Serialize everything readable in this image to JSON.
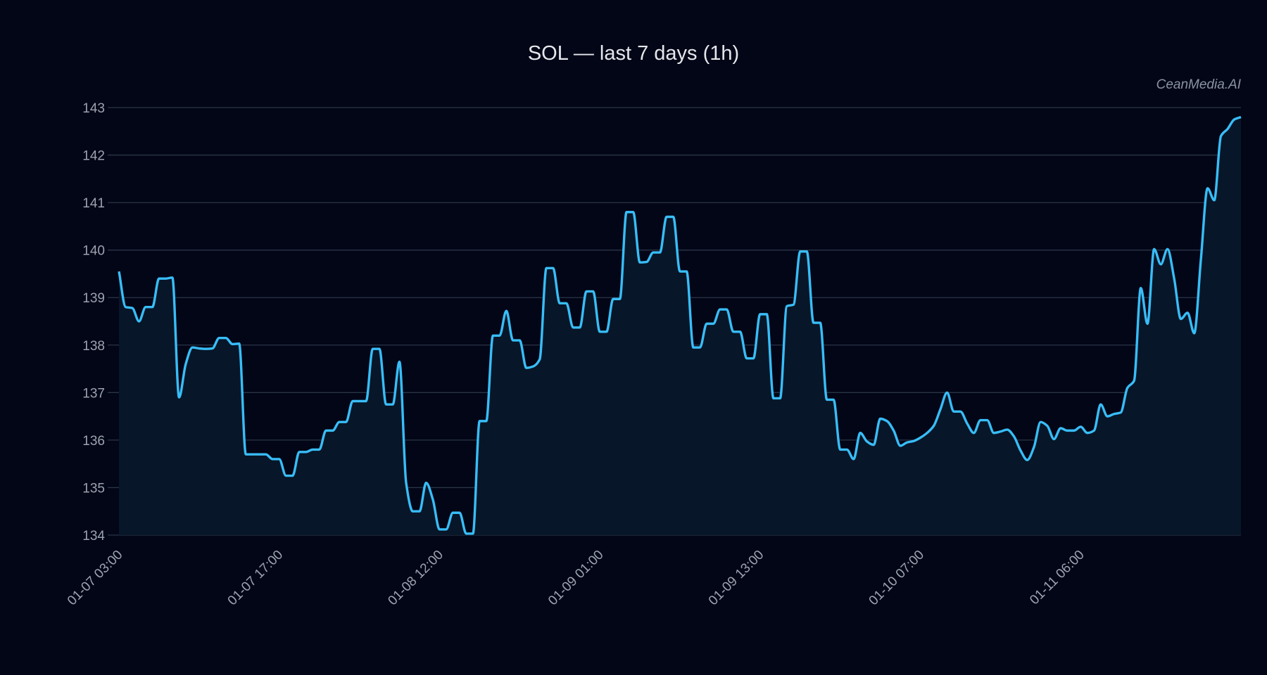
{
  "chart_data": {
    "type": "area",
    "title": "SOL — last 7 days (1h)",
    "watermark": "CeanMedia.AI",
    "xlabel": "",
    "ylabel": "",
    "ylim": [
      134,
      143
    ],
    "yticks": [
      134,
      135,
      136,
      137,
      138,
      139,
      140,
      141,
      142,
      143
    ],
    "xtick_labels": [
      "01-07 03:00",
      "01-07 17:00",
      "01-08 12:00",
      "01-09 01:00",
      "01-09 13:00",
      "01-10 07:00",
      "01-11 06:00"
    ],
    "xtick_step_points": 24,
    "grid": true,
    "colors": {
      "background": "#020617",
      "line": "#38bdf8",
      "fill": "#071628",
      "grid": "#2b3546",
      "text": "#9ca3af"
    },
    "series": [
      {
        "values": [
          139.55,
          138.8,
          138.78,
          138.5,
          138.8,
          138.8,
          139.4,
          139.4,
          139.42,
          136.9,
          137.6,
          137.95,
          137.93,
          137.92,
          137.93,
          138.15,
          138.15,
          138.02,
          138.03,
          135.7,
          135.7,
          135.7,
          135.7,
          135.6,
          135.6,
          135.25,
          135.25,
          135.75,
          135.75,
          135.8,
          135.8,
          136.2,
          136.2,
          136.38,
          136.38,
          136.82,
          136.82,
          136.82,
          137.92,
          137.92,
          136.75,
          136.75,
          137.65,
          135.1,
          134.5,
          134.5,
          135.1,
          134.75,
          134.12,
          134.12,
          134.47,
          134.47,
          134.03,
          134.03,
          136.4,
          136.4,
          138.2,
          138.2,
          138.72,
          138.1,
          138.1,
          137.52,
          137.55,
          137.7,
          139.62,
          139.62,
          138.88,
          138.88,
          138.37,
          138.37,
          139.13,
          139.13,
          138.28,
          138.28,
          138.97,
          138.97,
          140.8,
          140.8,
          139.74,
          139.75,
          139.95,
          139.95,
          140.7,
          140.7,
          139.55,
          139.55,
          137.95,
          137.95,
          138.45,
          138.45,
          138.75,
          138.75,
          138.28,
          138.28,
          137.72,
          137.72,
          138.65,
          138.65,
          136.88,
          136.88,
          138.82,
          138.85,
          139.97,
          139.97,
          138.47,
          138.47,
          136.85,
          136.85,
          135.8,
          135.8,
          135.6,
          136.15,
          135.97,
          135.9,
          136.45,
          136.4,
          136.2,
          135.88,
          135.95,
          135.98,
          136.05,
          136.15,
          136.3,
          136.65,
          137.0,
          136.6,
          136.6,
          136.35,
          136.15,
          136.42,
          136.42,
          136.15,
          136.18,
          136.22,
          136.08,
          135.78,
          135.58,
          135.85,
          136.38,
          136.3,
          136.02,
          136.25,
          136.2,
          136.2,
          136.28,
          136.15,
          136.2,
          136.75,
          136.5,
          136.55,
          136.58,
          137.1,
          137.25,
          139.2,
          138.45,
          140.02,
          139.7,
          140.02,
          139.4,
          138.55,
          138.68,
          138.25,
          139.8,
          141.3,
          141.05,
          142.4,
          142.55,
          142.75,
          142.8
        ]
      }
    ]
  }
}
